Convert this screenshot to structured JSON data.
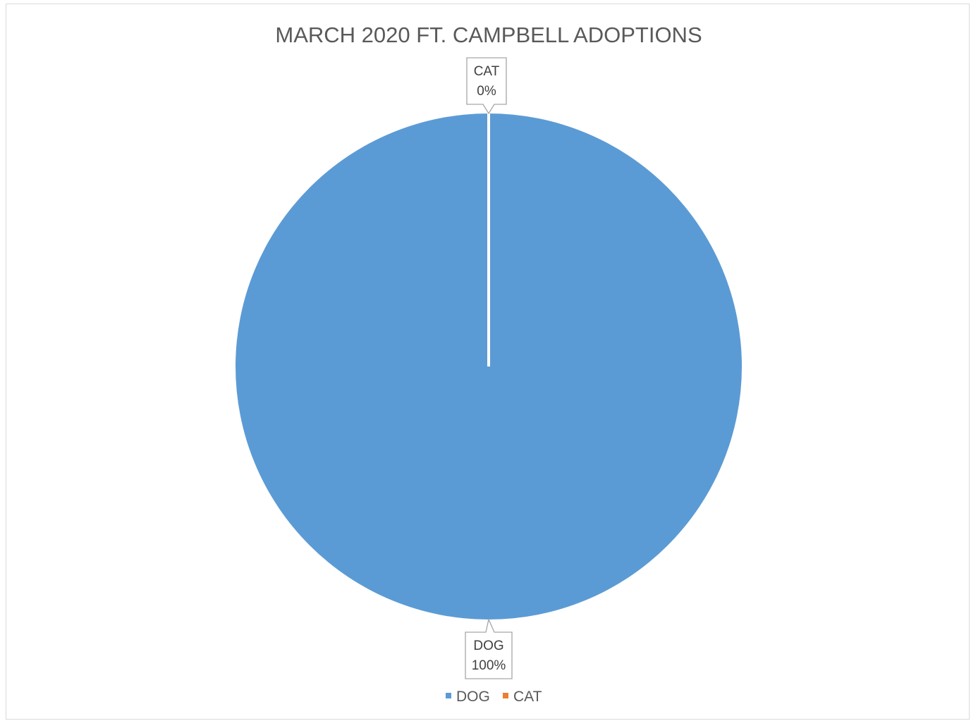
{
  "chart_data": {
    "type": "pie",
    "title": "MARCH 2020 FT. CAMPBELL ADOPTIONS",
    "slices": [
      {
        "label": "DOG",
        "value": 100,
        "percent_label": "100%",
        "color": "#5b9bd5"
      },
      {
        "label": "CAT",
        "value": 0,
        "percent_label": "0%",
        "color": "#ed7d31"
      }
    ],
    "legend": {
      "position": "bottom",
      "entries": [
        "DOG",
        "CAT"
      ]
    }
  }
}
